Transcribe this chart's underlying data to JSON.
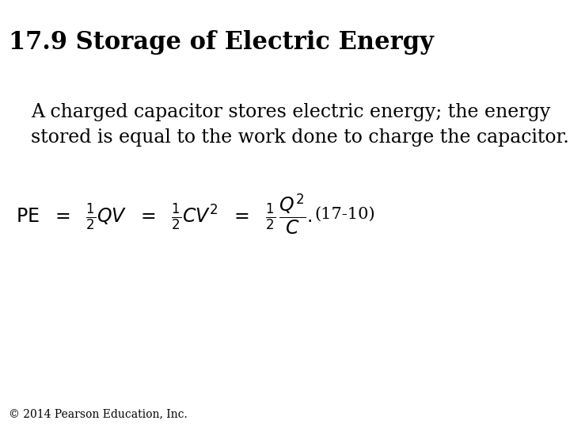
{
  "title": "17.9 Storage of Electric Energy",
  "title_fontsize": 22,
  "title_bold": true,
  "body_text_line1": "A charged capacitor stores electric energy; the energy",
  "body_text_line2": "stored is equal to the work done to charge the capacitor.",
  "body_fontsize": 17,
  "equation_label": "(17-10)",
  "equation_label_fontsize": 15,
  "footer": "© 2014 Pearson Education, Inc.",
  "footer_fontsize": 10,
  "background_color": "#ffffff",
  "text_color": "#000000"
}
